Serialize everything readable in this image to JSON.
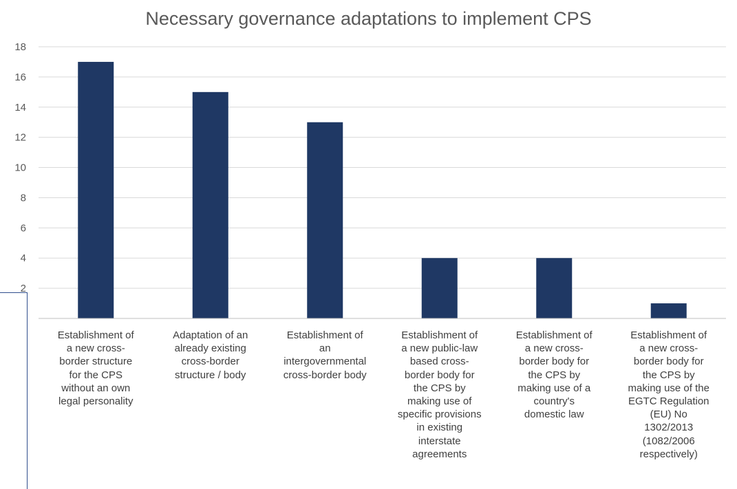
{
  "chart_data": {
    "type": "bar",
    "title": "Necessary governance adaptations to implement CPS",
    "categories": [
      "Establishment of a new cross-border structure for the CPS without an own legal personality",
      "Adaptation of an already existing cross-border structure / body",
      "Establishment of an intergovernmental cross-border body",
      "Establishment of a new public-law based cross-border body for the CPS by making use of specific provisions in existing interstate agreements",
      "Establishment of a new cross-border body for the CPS by making use of a country's domestic law",
      "Establishment of a new cross-border body for the CPS by making use of the EGTC Regulation (EU) No 1302/2013 (1082/2006 respectively)"
    ],
    "category_lines": [
      [
        "Establishment of",
        "a new cross-",
        "border structure",
        "for the CPS",
        "without an own",
        "legal personality"
      ],
      [
        "Adaptation of an",
        "already existing",
        "cross-border",
        "structure / body"
      ],
      [
        "Establishment of",
        "an",
        "intergovernmental",
        "cross-border body"
      ],
      [
        "Establishment of",
        "a new public-law",
        "based cross-",
        "border body for",
        "the CPS by",
        "making use of",
        "specific provisions",
        "in existing",
        "interstate",
        "agreements"
      ],
      [
        "Establishment of",
        "a new cross-",
        "border body for",
        "the CPS by",
        "making use of a",
        "country's",
        "domestic law"
      ],
      [
        "Establishment of",
        "a new cross-",
        "border body for",
        "the CPS by",
        "making use of the",
        "EGTC Regulation",
        "(EU) No",
        "1302/2013",
        "(1082/2006",
        "respectively)"
      ]
    ],
    "values": [
      17,
      15,
      13,
      4,
      4,
      1
    ],
    "ylim": [
      0,
      18
    ],
    "yticks": [
      "2",
      "4",
      "6",
      "8",
      "10",
      "12",
      "14",
      "16",
      "18"
    ],
    "xlabel": "",
    "ylabel": "",
    "grid": true,
    "legend": "none",
    "colors": {
      "bar": "#1f3864",
      "grid": "#d9d9d9",
      "axis": "#bfbfbf",
      "frame": "#2f4e8c"
    }
  }
}
